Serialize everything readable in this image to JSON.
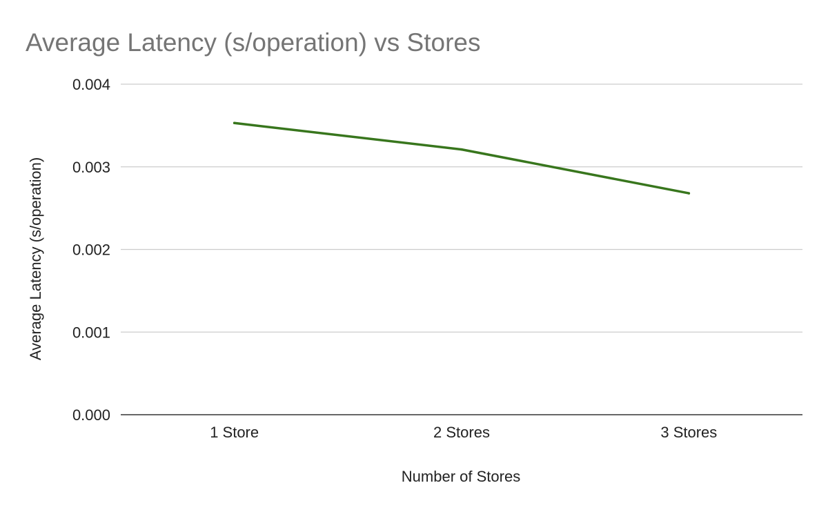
{
  "chart_data": {
    "type": "line",
    "title": "Average Latency (s/operation) vs Stores",
    "xlabel": "Number of Stores",
    "ylabel": "Average Latency (s/operation)",
    "categories": [
      "1 Store",
      "2 Stores",
      "3 Stores"
    ],
    "series": [
      {
        "values": [
          0.00353,
          0.00321,
          0.00268
        ],
        "color": "#38761d"
      }
    ],
    "ylim": [
      0,
      0.004
    ],
    "yticks": [
      "0.000",
      "0.001",
      "0.002",
      "0.003",
      "0.004"
    ],
    "grid": true,
    "legend": "none"
  }
}
